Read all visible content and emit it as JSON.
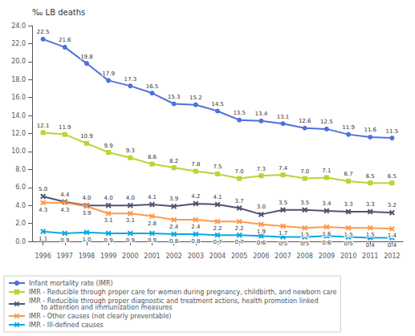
{
  "chart_data": {
    "type": "line",
    "ylabel": "‰ LB deaths",
    "x": [
      1996,
      1997,
      1998,
      1999,
      2000,
      2001,
      2002,
      2003,
      2004,
      2005,
      2006,
      2007,
      2008,
      2009,
      2010,
      2011,
      2012
    ],
    "xlim": [
      1995.5,
      2012.5
    ],
    "xticks": [
      1996,
      1997,
      1998,
      1999,
      2000,
      2001,
      2002,
      2003,
      2004,
      2005,
      2006,
      2007,
      2008,
      2009,
      2010,
      2011,
      2012
    ],
    "ylim": [
      0.0,
      24.0
    ],
    "yticks": [
      {
        "value": 0,
        "label": "0.0"
      },
      {
        "value": 2,
        "label": "2.0"
      },
      {
        "value": 4,
        "label": "4.0"
      },
      {
        "value": 6,
        "label": "6.0"
      },
      {
        "value": 8,
        "label": "8.0"
      },
      {
        "value": 10,
        "label": "10.0"
      },
      {
        "value": 12,
        "label": "12.0"
      },
      {
        "value": 14,
        "label": "14.0"
      },
      {
        "value": 16,
        "label": "16.0"
      },
      {
        "value": 18,
        "label": "18.0"
      },
      {
        "value": 20,
        "label": "20.0"
      },
      {
        "value": 22,
        "label": "22.0"
      },
      {
        "value": 24,
        "label": "24.0"
      }
    ],
    "grid": false,
    "legend": "lower left",
    "data_labels": true,
    "series": [
      {
        "name": "Infant mortality rate (IMR)",
        "marker": "circle",
        "values": [
          22.5,
          21.6,
          19.8,
          17.9,
          17.3,
          16.5,
          15.3,
          15.2,
          14.5,
          13.5,
          13.4,
          13.1,
          12.6,
          12.5,
          11.9,
          11.6,
          11.5
        ],
        "value_labels": [
          "22.5",
          "21.6",
          "19.8",
          "17.9",
          "17.3",
          "16.5",
          "15.3",
          "15.2",
          "14.5",
          "13.5",
          "13.4",
          "13.1",
          "12.6",
          "12.5",
          "11.9",
          "11.6",
          "11.5"
        ]
      },
      {
        "name": "IMR - Reducible through proper care for women during pregnancy, childbirth, and newborn care",
        "marker": "square",
        "values": [
          12.1,
          11.9,
          10.9,
          9.9,
          9.3,
          8.6,
          8.2,
          7.8,
          7.5,
          7.0,
          7.3,
          7.4,
          7.0,
          7.1,
          6.7,
          6.5,
          6.5
        ],
        "value_labels": [
          "12.1",
          "11.9",
          "10.9",
          "9.9",
          "9.3",
          "8.6",
          "8.2",
          "7.8",
          "7.5",
          "7.0",
          "7.3",
          "7.4",
          "7.0",
          "7.1",
          "6.7",
          "6.5",
          "6.5"
        ]
      },
      {
        "name": "IMR - Reducible through proper diagnostic and treatment actions, health promotion linked\n      to attention and immunization measures",
        "marker": "x",
        "values": [
          5.0,
          4.4,
          4.0,
          4.0,
          4.0,
          4.1,
          3.9,
          4.2,
          4.1,
          3.7,
          3.0,
          3.5,
          3.5,
          3.4,
          3.3,
          3.3,
          3.2
        ],
        "value_labels": [
          "5.0",
          "4.4",
          "4.0",
          "4.0",
          "4.0",
          "4.1",
          "3.9",
          "4.2",
          "4.1",
          "3.7",
          "3.0",
          "3.5",
          "3.5",
          "3.4",
          "3.3",
          "3.3",
          "3.2"
        ]
      },
      {
        "name": "IMR - Other causes (not clearly preventable)",
        "marker": "x",
        "values": [
          4.3,
          4.3,
          3.9,
          3.1,
          3.1,
          2.8,
          2.4,
          2.4,
          2.2,
          2.2,
          1.9,
          1.7,
          1.5,
          1.6,
          1.5,
          1.5,
          1.4
        ],
        "value_labels": [
          "4.3",
          "4.3",
          "3.9",
          "3.1",
          "3.1",
          "2.8",
          "2.4",
          "2.4",
          "2.2",
          "2.2",
          "1.9",
          "1.7",
          "1.5",
          "1.6",
          "1.5",
          "1.5",
          "1.4"
        ]
      },
      {
        "name": "IMR - Ill-defined causes",
        "marker": "x",
        "values": [
          1.1,
          0.9,
          1.0,
          0.9,
          0.9,
          0.9,
          0.8,
          0.8,
          0.7,
          0.7,
          0.6,
          0.5,
          0.5,
          0.6,
          0.5,
          0.4,
          0.4
        ],
        "value_labels": [
          "1.1",
          "0.9",
          "1.0",
          "0.9",
          "0.9",
          "0.9",
          "0.8",
          "0.8",
          "0.7",
          "0.7",
          "0.6",
          "0.5",
          "0.5",
          "0.6",
          "0.5",
          "0.4",
          "0.4"
        ]
      }
    ]
  }
}
